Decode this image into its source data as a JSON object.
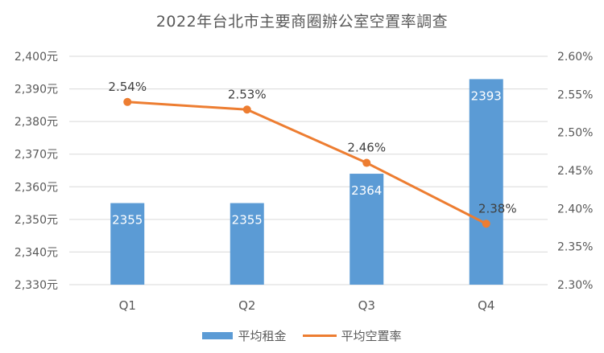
{
  "title": "2022年台北市主要商圈辦公室空置率調查",
  "colors": {
    "bar": "#5b9bd5",
    "line": "#ed7d31",
    "grid": "#d9d9d9",
    "text": "#595959"
  },
  "legend": {
    "bar_label": "平均租金",
    "line_label": "平均空置率"
  },
  "chart_data": {
    "type": "bar+line",
    "title": "2022年台北市主要商圈辦公室空置率調查",
    "categories": [
      "Q1",
      "Q2",
      "Q3",
      "Q4"
    ],
    "series": [
      {
        "name": "平均租金",
        "type": "bar",
        "axis": "left",
        "values": [
          2355,
          2355,
          2364,
          2393
        ],
        "labels": [
          "2355",
          "2355",
          "2364",
          "2393"
        ]
      },
      {
        "name": "平均空置率",
        "type": "line",
        "axis": "right",
        "values": [
          2.54,
          2.53,
          2.46,
          2.38
        ],
        "labels": [
          "2.54%",
          "2.53%",
          "2.46%",
          "2.38%"
        ]
      }
    ],
    "left_axis": {
      "ylim": [
        2330,
        2400
      ],
      "ticks": [
        "2,400元",
        "2,390元",
        "2,380元",
        "2,370元",
        "2,360元",
        "2,350元",
        "2,340元",
        "2,330元"
      ]
    },
    "right_axis": {
      "ylim": [
        2.3,
        2.6
      ],
      "ticks": [
        "2.60%",
        "2.55%",
        "2.50%",
        "2.45%",
        "2.40%",
        "2.35%",
        "2.30%"
      ]
    },
    "xlabel": "",
    "ylabel": "",
    "grid": true,
    "legend_position": "bottom"
  }
}
